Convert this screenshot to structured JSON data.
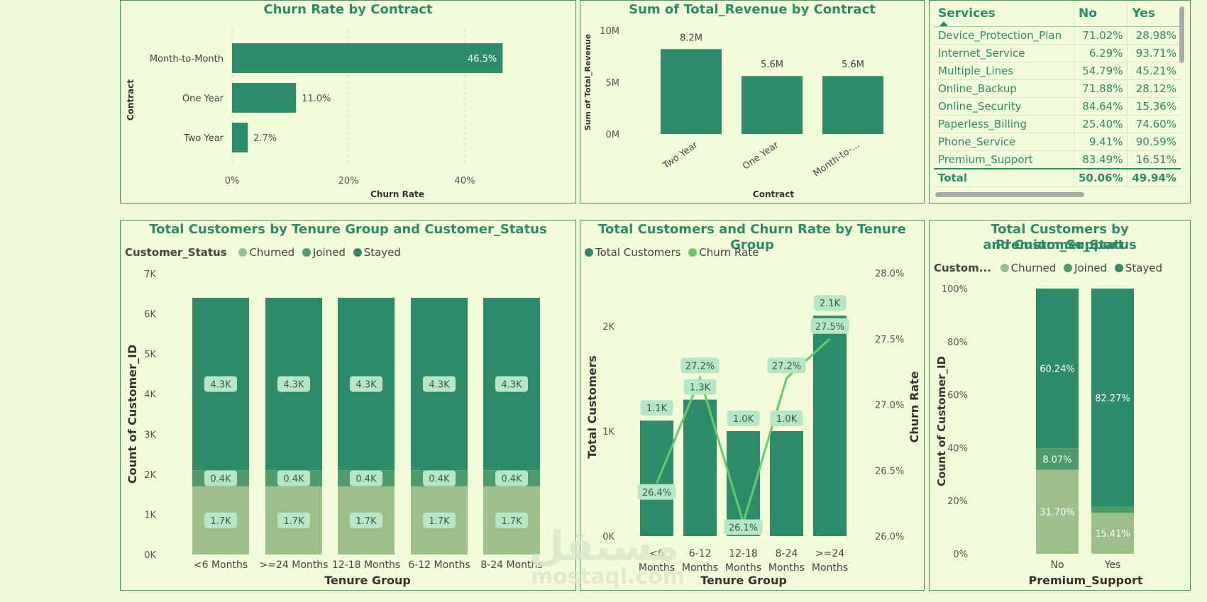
{
  "colors": {
    "dark_green": "#2e8b6a",
    "joined_green": "#4f9a6a",
    "churned_green": "#9dbf8a",
    "churn_line": "#63cc6a",
    "label_bg": "#b6e6c6"
  },
  "contract_churn": {
    "title": "Churn Rate by Contract",
    "chart_data": {
      "type": "bar",
      "orientation": "horizontal",
      "categories": [
        "Month-to-Month",
        "One Year",
        "Two Year"
      ],
      "values": [
        46.5,
        11.0,
        2.7
      ],
      "data_labels": [
        "46.5%",
        "11.0%",
        "2.7%"
      ],
      "xlabel": "Churn Rate",
      "ylabel": "Contract",
      "xlim": [
        0,
        50
      ],
      "xticks": [
        0,
        20,
        40
      ],
      "xtick_labels": [
        "0%",
        "20%",
        "40%"
      ],
      "grid": true
    }
  },
  "revenue_contract": {
    "title": "Sum of Total_Revenue by Contract",
    "chart_data": {
      "type": "bar",
      "categories": [
        "Two Year",
        "One Year",
        "Month-to-..."
      ],
      "values": [
        8.2,
        5.6,
        5.6
      ],
      "data_labels": [
        "8.2M",
        "5.6M",
        "5.6M"
      ],
      "xlabel": "Contract",
      "ylabel": "Sum of Total_Revenue",
      "ylim": [
        0,
        10
      ],
      "yticks": [
        0,
        5,
        10
      ],
      "ytick_labels": [
        "0M",
        "5M",
        "10M"
      ]
    }
  },
  "services_table": {
    "headers": [
      "Services",
      "No",
      "Yes"
    ],
    "rows": [
      {
        "service": "Device_Protection_Plan",
        "no": "71.02%",
        "yes": "28.98%"
      },
      {
        "service": "Internet_Service",
        "no": "6.29%",
        "yes": "93.71%"
      },
      {
        "service": "Multiple_Lines",
        "no": "54.79%",
        "yes": "45.21%"
      },
      {
        "service": "Online_Backup",
        "no": "71.88%",
        "yes": "28.12%"
      },
      {
        "service": "Online_Security",
        "no": "84.64%",
        "yes": "15.36%"
      },
      {
        "service": "Paperless_Billing",
        "no": "25.40%",
        "yes": "74.60%"
      },
      {
        "service": "Phone_Service",
        "no": "9.41%",
        "yes": "90.59%"
      },
      {
        "service": "Premium_Support",
        "no": "83.49%",
        "yes": "16.51%"
      }
    ],
    "total": {
      "label": "Total",
      "no": "50.06%",
      "yes": "49.94%"
    }
  },
  "tenure_status": {
    "title": "Total Customers by Tenure Group and Customer_Status",
    "legend_title": "Customer_Status",
    "chart_data": {
      "type": "bar",
      "stacked": true,
      "categories": [
        "<6 Months",
        ">=24 Months",
        "12-18 Months",
        "6-12 Months",
        "8-24 Months"
      ],
      "series": [
        {
          "name": "Churned",
          "values": [
            1.7,
            1.7,
            1.7,
            1.7,
            1.7
          ],
          "labels": [
            "1.7K",
            "1.7K",
            "1.7K",
            "1.7K",
            "1.7K"
          ]
        },
        {
          "name": "Joined",
          "values": [
            0.4,
            0.4,
            0.4,
            0.4,
            0.4
          ],
          "labels": [
            "0.4K",
            "0.4K",
            "0.4K",
            "0.4K",
            "0.4K"
          ]
        },
        {
          "name": "Stayed",
          "values": [
            4.3,
            4.3,
            4.3,
            4.3,
            4.3
          ],
          "labels": [
            "4.3K",
            "4.3K",
            "4.3K",
            "4.3K",
            "4.3K"
          ]
        }
      ],
      "xlabel": "Tenure Group",
      "ylabel": "Count of Customer_ID",
      "ylim": [
        0,
        7
      ],
      "yticks": [
        0,
        1,
        2,
        3,
        4,
        5,
        6,
        7
      ],
      "ytick_labels": [
        "0K",
        "1K",
        "2K",
        "3K",
        "4K",
        "5K",
        "6K",
        "7K"
      ]
    }
  },
  "tenure_combo": {
    "title": "Total Customers and Churn Rate by Tenure Group",
    "legend": [
      "Total Customers",
      "Churn Rate"
    ],
    "chart_data": {
      "type": "bar",
      "combo": "bar+line",
      "categories": [
        "<6 Months",
        "6-12 Months",
        "12-18 Months",
        "8-24 Months",
        ">=24 Months"
      ],
      "category_lines": [
        [
          "<6",
          "Months"
        ],
        [
          "6-12",
          "Months"
        ],
        [
          "12-18",
          "Months"
        ],
        [
          "8-24",
          "Months"
        ],
        [
          ">=24",
          "Months"
        ]
      ],
      "series": [
        {
          "name": "Total Customers",
          "type": "bar",
          "values": [
            1.1,
            1.3,
            1.0,
            1.0,
            2.1
          ],
          "labels": [
            "1.1K",
            "1.3K",
            "1.0K",
            "1.0K",
            "2.1K"
          ]
        },
        {
          "name": "Churn Rate",
          "type": "line",
          "values": [
            26.4,
            27.2,
            26.1,
            27.2,
            27.5
          ],
          "labels": [
            "26.4%",
            "27.2%",
            "26.1%",
            "27.2%",
            "27.5%"
          ]
        }
      ],
      "xlabel": "Tenure Group",
      "ylabel": "Total Customers",
      "y2label": "Churn Rate",
      "ylim": [
        0,
        2.5
      ],
      "yticks": [
        0,
        1,
        2
      ],
      "ytick_labels": [
        "0K",
        "1K",
        "2K"
      ],
      "y2lim": [
        26.0,
        28.0
      ],
      "y2ticks": [
        26.0,
        26.5,
        27.0,
        27.5,
        28.0
      ],
      "y2tick_labels": [
        "26.0%",
        "26.5%",
        "27.0%",
        "27.5%",
        "28.0%"
      ]
    }
  },
  "premium_status": {
    "title_line1": "Total Customers by Premium_Support",
    "title_line2": "and Customer_Status",
    "legend_title": "Custom...",
    "chart_data": {
      "type": "bar",
      "stacked": true,
      "normalized": true,
      "categories": [
        "No",
        "Yes"
      ],
      "series": [
        {
          "name": "Churned",
          "values": [
            31.7,
            15.41
          ],
          "labels": [
            "31.70%",
            "15.41%"
          ]
        },
        {
          "name": "Joined",
          "values": [
            8.07,
            2.32
          ],
          "labels": [
            "8.07%",
            ""
          ]
        },
        {
          "name": "Stayed",
          "values": [
            60.24,
            82.27
          ],
          "labels": [
            "60.24%",
            "82.27%"
          ]
        }
      ],
      "xlabel": "Premium_Support",
      "ylabel": "Count of Customer_ID",
      "ylim": [
        0,
        100
      ],
      "yticks": [
        0,
        20,
        40,
        60,
        80,
        100
      ],
      "ytick_labels": [
        "0%",
        "20%",
        "40%",
        "60%",
        "80%",
        "100%"
      ]
    }
  },
  "watermark": {
    "logo": "مستقل",
    "site": "mostaql.com"
  }
}
